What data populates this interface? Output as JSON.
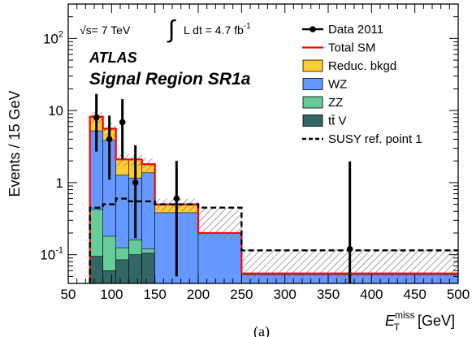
{
  "chart_data": {
    "type": "bar",
    "panel_label": "(a)",
    "annotations": {
      "sqrt_s": "√s= 7 TeV",
      "lumi": "L dt = 4.7 fb",
      "lumi_exp": "-1",
      "experiment": "ATLAS",
      "region": "Signal Region SR1a"
    },
    "xlabel": {
      "main": "E",
      "sup": "miss",
      "sub": "T",
      "unit": "[GeV]"
    },
    "ylabel": "Events / 15 GeV",
    "xlim": [
      50,
      500
    ],
    "ylim": [
      0.04,
      300
    ],
    "yscale": "log",
    "x_ticks": [
      "50",
      "100",
      "150",
      "200",
      "250",
      "300",
      "350",
      "400",
      "450",
      "500"
    ],
    "y_ticks": [
      {
        "value": 0.1,
        "base": "10",
        "exp": "-1"
      },
      {
        "value": 1,
        "base": "1",
        "exp": ""
      },
      {
        "value": 10,
        "base": "10",
        "exp": ""
      },
      {
        "value": 100,
        "base": "10",
        "exp": "2"
      }
    ],
    "bin_edges": [
      75,
      90,
      105,
      120,
      135,
      150,
      200,
      250,
      500
    ],
    "stack": [
      {
        "key": "ttv",
        "name": "tt̄ V",
        "color": "#336666",
        "values": [
          0.095,
          0.06,
          0.085,
          0.1,
          0.105,
          0.003,
          0.003,
          0.003
        ]
      },
      {
        "key": "zz",
        "name": "ZZ",
        "color": "#66cc99",
        "values": [
          0.33,
          0.12,
          0.04,
          0.06,
          0.015,
          0.01,
          0.005,
          0.003
        ]
      },
      {
        "key": "wz",
        "name": "WZ",
        "color": "#6699ff",
        "values": [
          4.8,
          3.7,
          1.15,
          1.0,
          1.25,
          0.37,
          0.19,
          0.047
        ]
      },
      {
        "key": "reduc",
        "name": "Reduc. bkgd",
        "color": "#ffcc33",
        "values": [
          3.0,
          1.7,
          0.82,
          0.95,
          0.45,
          0.12,
          0.002,
          0.002
        ]
      }
    ],
    "total_sm": {
      "name": "Total SM",
      "color": "#ff0000",
      "values": [
        8.2,
        5.6,
        2.1,
        2.1,
        1.8,
        0.5,
        0.2,
        0.055
      ]
    },
    "syst_band": [
      [
        6.7,
        9.5
      ],
      [
        4.5,
        6.7
      ],
      [
        1.7,
        2.5
      ],
      [
        1.7,
        2.5
      ],
      [
        1.45,
        2.2
      ],
      [
        0.4,
        0.6
      ],
      [
        0.16,
        0.45
      ],
      [
        0.044,
        0.12
      ]
    ],
    "susy": {
      "name": "SUSY ref. point 1",
      "values": [
        0.45,
        0.5,
        0.6,
        0.55,
        0.55,
        0.5,
        0.45,
        0.115
      ]
    },
    "data": {
      "name": "Data 2011",
      "x": [
        82.5,
        97.5,
        112.5,
        127.5,
        175,
        375
      ],
      "y": [
        8.0,
        4.0,
        6.9,
        1.0,
        0.6,
        0.12
      ],
      "err_low": [
        5.3,
        2.9,
        4.8,
        0.83,
        0.55,
        0.11
      ],
      "err_high": [
        9.0,
        4.5,
        7.5,
        2.3,
        1.4,
        1.85
      ]
    },
    "legend_position": "top-right",
    "grid": false
  }
}
